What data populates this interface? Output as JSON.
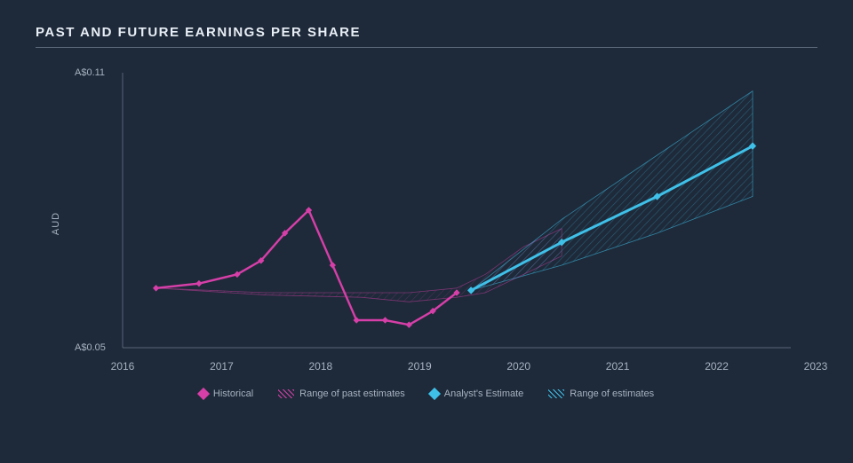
{
  "chart": {
    "title": "PAST AND FUTURE EARNINGS PER SHARE",
    "y_axis_label": "AUD",
    "background_color": "#1e2a3a",
    "title_color": "#e8eef5",
    "axis_text_color": "#a8b2c0",
    "axis_line_color": "#5a6778",
    "title_fontsize": 15,
    "axis_fontsize": 11,
    "x": {
      "min": 2016,
      "max": 2023,
      "ticks": [
        2016,
        2017,
        2018,
        2019,
        2020,
        2021,
        2022,
        2023
      ]
    },
    "y": {
      "min": 0.05,
      "max": 0.11,
      "ticks": [
        {
          "v": 0.05,
          "label": "A$0.05"
        },
        {
          "v": 0.11,
          "label": "A$0.11"
        }
      ]
    },
    "series": {
      "historical": {
        "label": "Historical",
        "color": "#d63fa8",
        "line_width": 2.5,
        "marker": "diamond",
        "marker_size": 7,
        "points": [
          {
            "x": 2016.35,
            "y": 0.063
          },
          {
            "x": 2016.8,
            "y": 0.064
          },
          {
            "x": 2017.2,
            "y": 0.066
          },
          {
            "x": 2017.45,
            "y": 0.069
          },
          {
            "x": 2017.7,
            "y": 0.075
          },
          {
            "x": 2017.95,
            "y": 0.08
          },
          {
            "x": 2018.2,
            "y": 0.068
          },
          {
            "x": 2018.45,
            "y": 0.056
          },
          {
            "x": 2018.75,
            "y": 0.056
          },
          {
            "x": 2019.0,
            "y": 0.055
          },
          {
            "x": 2019.25,
            "y": 0.058
          },
          {
            "x": 2019.5,
            "y": 0.062
          }
        ]
      },
      "past_range": {
        "label": "Range of past estimates",
        "color": "#d63fa8",
        "opacity": 0.25,
        "hatch": true,
        "upper": [
          {
            "x": 2016.35,
            "y": 0.063
          },
          {
            "x": 2017.5,
            "y": 0.062
          },
          {
            "x": 2018.5,
            "y": 0.062
          },
          {
            "x": 2019.0,
            "y": 0.062
          },
          {
            "x": 2019.5,
            "y": 0.063
          },
          {
            "x": 2019.8,
            "y": 0.066
          },
          {
            "x": 2020.2,
            "y": 0.072
          },
          {
            "x": 2020.6,
            "y": 0.076
          }
        ],
        "lower": [
          {
            "x": 2020.6,
            "y": 0.07
          },
          {
            "x": 2020.2,
            "y": 0.066
          },
          {
            "x": 2019.8,
            "y": 0.062
          },
          {
            "x": 2019.5,
            "y": 0.061
          },
          {
            "x": 2019.0,
            "y": 0.06
          },
          {
            "x": 2018.5,
            "y": 0.061
          },
          {
            "x": 2017.5,
            "y": 0.0615
          },
          {
            "x": 2016.35,
            "y": 0.063
          }
        ]
      },
      "estimate": {
        "label": "Analyst's Estimate",
        "color": "#3fc0e8",
        "line_width": 3,
        "marker": "diamond",
        "marker_size": 8,
        "points": [
          {
            "x": 2019.65,
            "y": 0.0625
          },
          {
            "x": 2020.6,
            "y": 0.073
          },
          {
            "x": 2021.6,
            "y": 0.083
          },
          {
            "x": 2022.6,
            "y": 0.094
          }
        ]
      },
      "future_range": {
        "label": "Range of estimates",
        "color": "#3fc0e8",
        "opacity": 0.35,
        "hatch": true,
        "upper": [
          {
            "x": 2019.65,
            "y": 0.0625
          },
          {
            "x": 2020.6,
            "y": 0.078
          },
          {
            "x": 2021.6,
            "y": 0.092
          },
          {
            "x": 2022.6,
            "y": 0.106
          }
        ],
        "lower": [
          {
            "x": 2022.6,
            "y": 0.083
          },
          {
            "x": 2021.6,
            "y": 0.075
          },
          {
            "x": 2020.6,
            "y": 0.068
          },
          {
            "x": 2019.65,
            "y": 0.0625
          }
        ]
      }
    },
    "legend": [
      {
        "kind": "diamond",
        "color": "#d63fa8",
        "label": "Historical"
      },
      {
        "kind": "hatch",
        "color": "#d63fa8",
        "label": "Range of past estimates"
      },
      {
        "kind": "diamond",
        "color": "#3fc0e8",
        "label": "Analyst's Estimate"
      },
      {
        "kind": "hatch",
        "color": "#3fc0e8",
        "label": "Range of estimates"
      }
    ]
  }
}
